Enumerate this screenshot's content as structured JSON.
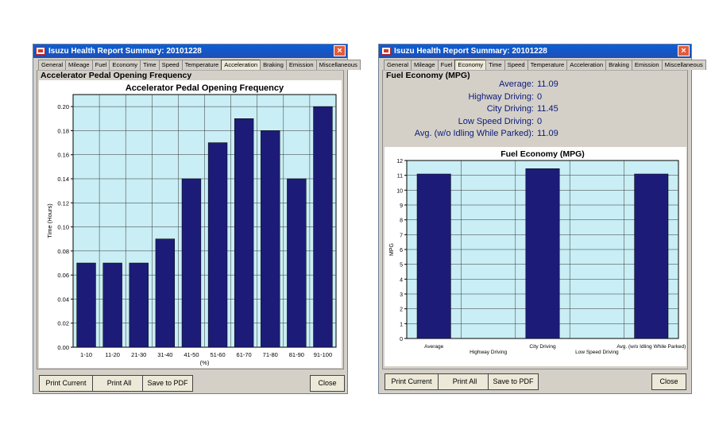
{
  "windows": {
    "acceleration": {
      "title": "Isuzu Health Report Summary: 20101228",
      "tabs": [
        "General",
        "Mileage",
        "Fuel",
        "Economy",
        "Time",
        "Speed",
        "Temperature",
        "Acceleration",
        "Braking",
        "Emission",
        "Miscellaneous"
      ],
      "active_tab": "Acceleration",
      "group_title": "Accelerator Pedal Opening Frequency",
      "buttons": {
        "print_current": "Print Current",
        "print_all": "Print All",
        "save_pdf": "Save to PDF",
        "close": "Close"
      }
    },
    "economy": {
      "title": "Isuzu Health Report Summary: 20101228",
      "tabs": [
        "General",
        "Mileage",
        "Fuel",
        "Economy",
        "Time",
        "Speed",
        "Temperature",
        "Acceleration",
        "Braking",
        "Emission",
        "Miscellaneous"
      ],
      "active_tab": "Economy",
      "group_title": "Fuel Economy (MPG)",
      "stats": [
        {
          "label": "Average:",
          "value": "11.09"
        },
        {
          "label": "Highway Driving:",
          "value": "0"
        },
        {
          "label": "City Driving:",
          "value": "11.45"
        },
        {
          "label": "Low Speed Driving:",
          "value": "0"
        },
        {
          "label": "Avg. (w/o Idling While Parked):",
          "value": "11.09"
        }
      ],
      "buttons": {
        "print_current": "Print Current",
        "print_all": "Print All",
        "save_pdf": "Save to PDF",
        "close": "Close"
      }
    }
  },
  "colors": {
    "bar": "#1c1c78",
    "plot_bg": "#c9eef5",
    "grid": "#333333"
  },
  "chart_data": [
    {
      "type": "bar",
      "title": "Accelerator Pedal Opening Frequency",
      "xlabel": "(%)",
      "ylabel": "Time (Hours)",
      "categories": [
        "1-10",
        "11-20",
        "21-30",
        "31-40",
        "41-50",
        "51-60",
        "61-70",
        "71-80",
        "81-90",
        "91-100"
      ],
      "values": [
        0.07,
        0.07,
        0.07,
        0.09,
        0.14,
        0.17,
        0.19,
        0.18,
        0.14,
        0.2
      ],
      "ylim": [
        0,
        0.21
      ],
      "yticks": [
        "0.00",
        "0.02",
        "0.04",
        "0.06",
        "0.08",
        "0.10",
        "0.12",
        "0.14",
        "0.16",
        "0.18",
        "0.20"
      ],
      "grid": true
    },
    {
      "type": "bar",
      "title": "Fuel Economy (MPG)",
      "xlabel": "",
      "ylabel": "MPG",
      "categories": [
        "Average",
        "Highway Driving",
        "City Driving",
        "Low Speed Driving",
        "Avg. (w/o Idling While Parked)"
      ],
      "values": [
        11.09,
        0,
        11.45,
        0,
        11.09
      ],
      "ylim": [
        0,
        12
      ],
      "yticks": [
        "0",
        "1",
        "2",
        "3",
        "4",
        "5",
        "6",
        "7",
        "8",
        "9",
        "10",
        "11",
        "12"
      ],
      "grid": true
    }
  ]
}
